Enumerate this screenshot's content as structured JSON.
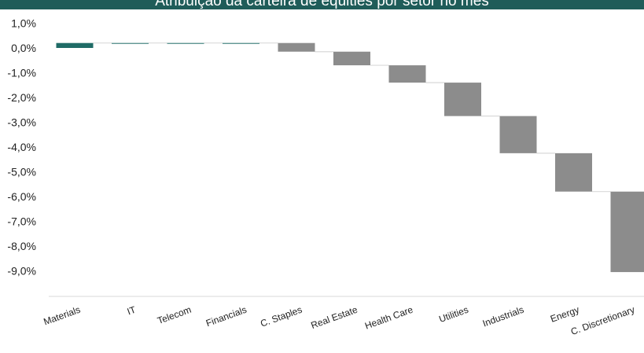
{
  "chart_data": {
    "type": "bar",
    "subtype": "waterfall",
    "title": "Atribuição da carteira de equities por setor no mês",
    "xlabel": "",
    "ylabel": "",
    "ylim": [
      -10.0,
      1.0
    ],
    "yticks": [
      1.0,
      0.0,
      -1.0,
      -2.0,
      -3.0,
      -4.0,
      -5.0,
      -6.0,
      -7.0,
      -8.0,
      -9.0
    ],
    "ytick_labels": [
      "1,0%",
      "0,0%",
      "-1,0%",
      "-2,0%",
      "-3,0%",
      "-4,0%",
      "-5,0%",
      "-6,0%",
      "-7,0%",
      "-8,0%",
      "-9,0%"
    ],
    "categories": [
      "Materials",
      "IT",
      "Telecom",
      "Financials",
      "C. Staples",
      "Real Estate",
      "Health Care",
      "Utilities",
      "Industrials",
      "Energy",
      "C. Discretionary"
    ],
    "values": [
      0.2,
      0.0,
      0.0,
      0.0,
      -0.35,
      -0.55,
      -0.7,
      -1.35,
      -1.5,
      -1.55,
      -3.25
    ],
    "grid": false,
    "legend": "none",
    "colors": {
      "positive": "#1f6b66",
      "negative": "#8c8c8c",
      "connector": "#d9d9d9",
      "title_bar": "#1f5c59"
    }
  }
}
